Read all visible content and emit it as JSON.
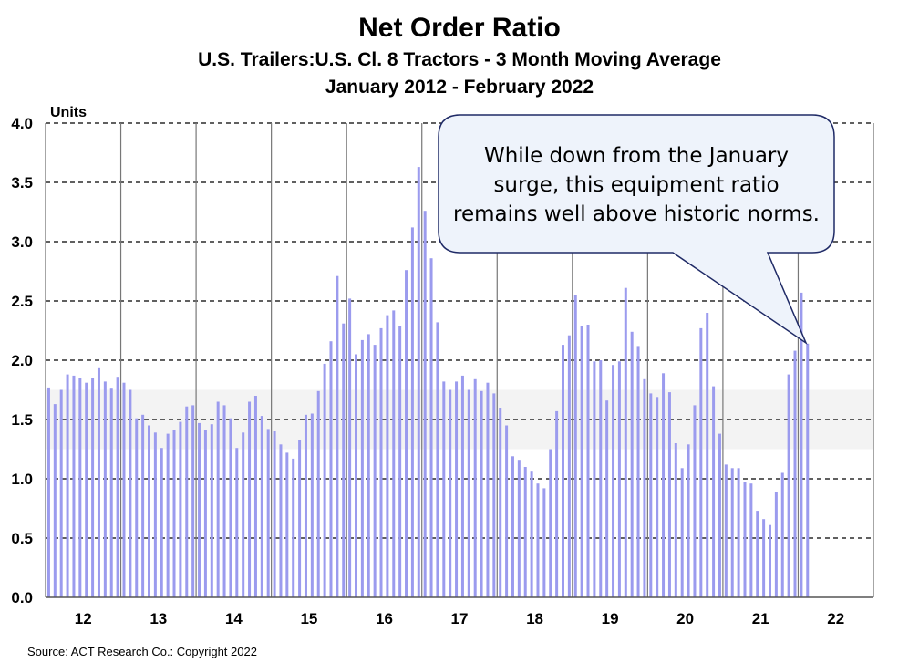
{
  "chart_data": {
    "type": "bar",
    "title": "Net Order Ratio",
    "subtitle": "U.S. Trailers:U.S. Cl. 8 Tractors - 3 Month Moving Average",
    "period": "January 2012 - February 2022",
    "ylabel": "Units",
    "ylim": [
      0,
      4
    ],
    "yticks": [
      "0.0",
      "0.5",
      "1.0",
      "1.5",
      "2.0",
      "2.5",
      "3.0",
      "3.5",
      "4.0"
    ],
    "xticks": [
      "12",
      "13",
      "14",
      "15",
      "16",
      "17",
      "18",
      "19",
      "20",
      "21",
      "22"
    ],
    "grid": true,
    "shaded_band": [
      1.25,
      1.75
    ],
    "bar_color": "#9b9bee",
    "series": [
      {
        "year": "12",
        "values": [
          1.77,
          1.63,
          1.75,
          1.88,
          1.87,
          1.85,
          1.81,
          1.85,
          1.94,
          1.82,
          1.76,
          1.86
        ]
      },
      {
        "year": "13",
        "values": [
          1.81,
          1.75,
          1.51,
          1.54,
          1.45,
          1.39,
          1.26,
          1.38,
          1.41,
          1.48,
          1.61,
          1.62
        ]
      },
      {
        "year": "14",
        "values": [
          1.47,
          1.41,
          1.46,
          1.65,
          1.62,
          1.51,
          1.26,
          1.39,
          1.65,
          1.7,
          1.53,
          1.42
        ]
      },
      {
        "year": "15",
        "values": [
          1.4,
          1.29,
          1.22,
          1.17,
          1.33,
          1.54,
          1.55,
          1.74,
          1.97,
          2.16,
          2.71,
          2.31
        ]
      },
      {
        "year": "16",
        "values": [
          2.52,
          2.05,
          2.17,
          2.22,
          2.13,
          2.27,
          2.38,
          2.42,
          2.29,
          2.76,
          3.12,
          3.63
        ]
      },
      {
        "year": "17",
        "values": [
          3.26,
          2.86,
          2.32,
          1.82,
          1.75,
          1.82,
          1.87,
          1.75,
          1.84,
          1.74,
          1.81,
          1.72
        ]
      },
      {
        "year": "18",
        "values": [
          1.6,
          1.45,
          1.19,
          1.16,
          1.1,
          1.06,
          0.96,
          0.92,
          1.25,
          1.57,
          2.13,
          2.21
        ]
      },
      {
        "year": "19",
        "values": [
          2.55,
          2.29,
          2.3,
          1.99,
          2.0,
          1.66,
          1.96,
          1.99,
          2.61,
          2.24,
          2.12,
          1.84
        ]
      },
      {
        "year": "20",
        "values": [
          1.72,
          1.69,
          1.89,
          1.73,
          1.3,
          1.09,
          1.29,
          1.62,
          2.27,
          2.4,
          1.78,
          1.38
        ]
      },
      {
        "year": "21",
        "values": [
          1.12,
          1.09,
          1.09,
          0.97,
          0.96,
          0.73,
          0.66,
          0.61,
          0.89,
          1.05,
          1.88,
          2.08
        ]
      },
      {
        "year": "22",
        "values": [
          2.57,
          2.14
        ]
      }
    ],
    "annotation": [
      "While down from the January",
      "surge, this equipment ratio",
      "remains well above historic norms."
    ]
  },
  "source": "Source:  ACT Research Co.: Copyright  2022"
}
